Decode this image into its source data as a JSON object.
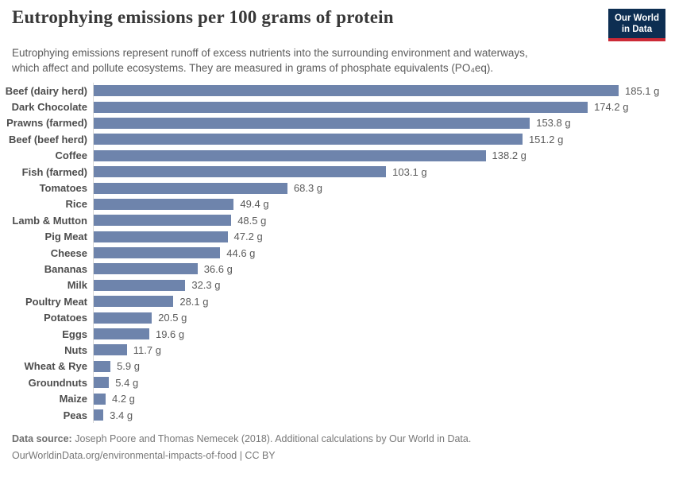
{
  "header": {
    "title": "Eutrophying emissions per 100 grams of protein",
    "subtitle_line1": "Eutrophying emissions represent runoff of excess nutrients into the surrounding environment and waterways,",
    "subtitle_line2": "which affect and pollute ecosystems. They are measured in grams of phosphate equivalents (PO₄eq).",
    "logo_line1": "Our World",
    "logo_line2": "in Data"
  },
  "chart_data": {
    "type": "bar",
    "orientation": "horizontal",
    "title": "Eutrophying emissions per 100 grams of protein",
    "xlabel": "",
    "ylabel": "",
    "unit": "g",
    "xlim": [
      0,
      185.1
    ],
    "grid": false,
    "bar_color": "#6e84ac",
    "axis_line_color": "#d9d9d9",
    "categories": [
      "Beef (dairy herd)",
      "Dark Chocolate",
      "Prawns (farmed)",
      "Beef (beef herd)",
      "Coffee",
      "Fish (farmed)",
      "Tomatoes",
      "Rice",
      "Lamb & Mutton",
      "Pig Meat",
      "Cheese",
      "Bananas",
      "Milk",
      "Poultry Meat",
      "Potatoes",
      "Eggs",
      "Nuts",
      "Wheat & Rye",
      "Groundnuts",
      "Maize",
      "Peas"
    ],
    "values": [
      185.1,
      174.2,
      153.8,
      151.2,
      138.2,
      103.1,
      68.3,
      49.4,
      48.5,
      47.2,
      44.6,
      36.6,
      32.3,
      28.1,
      20.5,
      19.6,
      11.7,
      5.9,
      5.4,
      4.2,
      3.4
    ],
    "value_labels": [
      "185.1 g",
      "174.2 g",
      "153.8 g",
      "151.2 g",
      "138.2 g",
      "103.1 g",
      "68.3 g",
      "49.4 g",
      "48.5 g",
      "47.2 g",
      "44.6 g",
      "36.6 g",
      "32.3 g",
      "28.1 g",
      "20.5 g",
      "19.6 g",
      "11.7 g",
      "5.9 g",
      "5.4 g",
      "4.2 g",
      "3.4 g"
    ]
  },
  "footer": {
    "source_bold": "Data source:",
    "source_rest": " Joseph Poore and Thomas Nemecek (2018). Additional calculations by Our World in Data.",
    "link": "OurWorldinData.org/environmental-impacts-of-food",
    "suffix": " | CC BY"
  },
  "colors": {
    "bar": "#6e84ac",
    "logo_background": "#0d2e52",
    "logo_accent": "#cc2a36",
    "title_text": "#383838",
    "body_text": "#5b5b5b"
  }
}
